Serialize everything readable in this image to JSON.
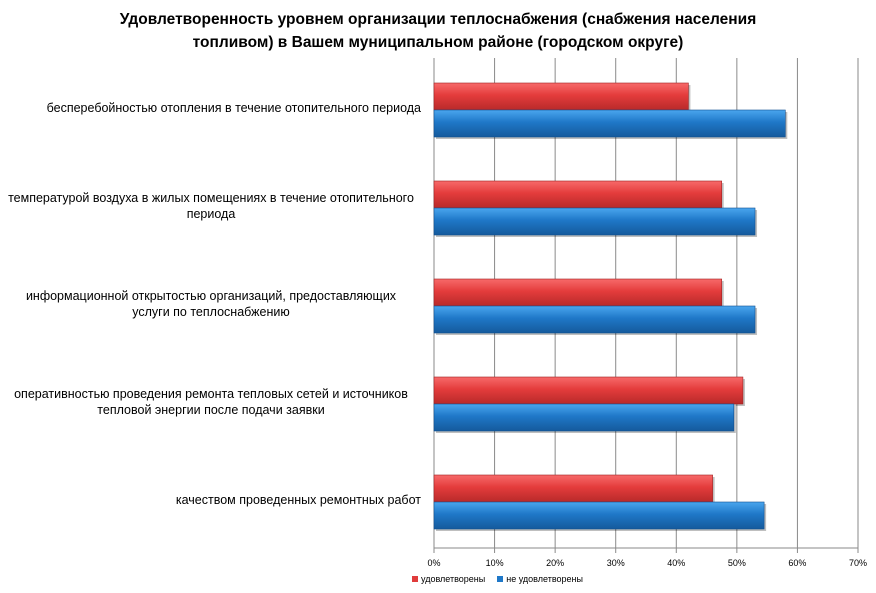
{
  "chart_data": {
    "type": "bar",
    "orientation": "horizontal",
    "title": [
      "Удовлетворенность уровнем организации теплоснабжения (снабжения населения",
      "топливом) в Вашем муниципальном районе (городском округе)"
    ],
    "categories": [
      "бесперебойностью отопления в течение отопительного периода",
      "температурой воздуха в жилых помещениях в течение отопительного периода",
      "информационной открытостью организаций, предоставляющих услуги по теплоснабжению",
      "оперативностью проведения ремонта тепловых сетей и источников тепловой энергии после подачи заявки",
      "качеством проведенных ремонтных работ"
    ],
    "category_lines": [
      [
        "бесперебойностью отопления в течение отопительного периода"
      ],
      [
        "температурой воздуха в жилых помещениях в течение отопительного",
        "периода"
      ],
      [
        "информационной открытостью организаций, предоставляющих",
        "услуги по теплоснабжению"
      ],
      [
        "оперативностью проведения ремонта тепловых сетей и источников",
        "тепловой энергии после подачи заявки"
      ],
      [
        "качеством проведенных ремонтных работ"
      ]
    ],
    "series": [
      {
        "name": "удовлетворены",
        "color": "#e03c3c",
        "values": [
          42,
          47.5,
          47.5,
          51,
          46
        ]
      },
      {
        "name": "не удовлетворены",
        "color": "#1f78c8",
        "values": [
          58,
          53,
          53,
          49.5,
          54.5
        ]
      }
    ],
    "xlim": [
      0,
      70
    ],
    "xticks": [
      "0%",
      "10%",
      "20%",
      "30%",
      "40%",
      "50%",
      "60%",
      "70%"
    ],
    "grid": true,
    "legend": "bottom"
  }
}
